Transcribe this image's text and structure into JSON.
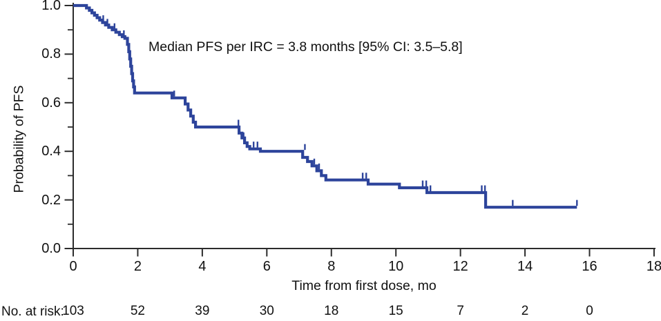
{
  "chart_data": {
    "type": "line",
    "subtype": "kaplan-meier-step",
    "annotation": "Median PFS per IRC = 3.8 months [95% CI: 3.5–5.8]",
    "xlabel": "Time from first dose, mo",
    "ylabel": "Probability of PFS",
    "xlim": [
      0,
      18
    ],
    "ylim": [
      0.0,
      1.0
    ],
    "x_ticks": [
      0,
      2,
      4,
      6,
      8,
      10,
      12,
      14,
      16,
      18
    ],
    "y_ticks_major": [
      "0.0",
      "0.2",
      "0.4",
      "0.6",
      "0.8",
      "1.0"
    ],
    "y_ticks_major_values": [
      0.0,
      0.2,
      0.4,
      0.6,
      0.8,
      1.0
    ],
    "y_ticks_minor_values": [
      0.1,
      0.3,
      0.5,
      0.7,
      0.9
    ],
    "grid": "off",
    "legend": "none",
    "series": [
      {
        "name": "PFS per IRC",
        "color": "#2d449b",
        "steps": [
          [
            0.0,
            1.0
          ],
          [
            0.41,
            0.99
          ],
          [
            0.5,
            0.98
          ],
          [
            0.58,
            0.97
          ],
          [
            0.66,
            0.96
          ],
          [
            0.74,
            0.95
          ],
          [
            0.82,
            0.94
          ],
          [
            0.91,
            0.93
          ],
          [
            1.0,
            0.92
          ],
          [
            1.1,
            0.91
          ],
          [
            1.21,
            0.9
          ],
          [
            1.32,
            0.89
          ],
          [
            1.43,
            0.88
          ],
          [
            1.52,
            0.872
          ],
          [
            1.6,
            0.865
          ],
          [
            1.68,
            0.84
          ],
          [
            1.72,
            0.81
          ],
          [
            1.75,
            0.78
          ],
          [
            1.78,
            0.75
          ],
          [
            1.81,
            0.72
          ],
          [
            1.84,
            0.69
          ],
          [
            1.87,
            0.665
          ],
          [
            1.9,
            0.64
          ],
          [
            3.06,
            0.62
          ],
          [
            3.47,
            0.595
          ],
          [
            3.56,
            0.57
          ],
          [
            3.64,
            0.545
          ],
          [
            3.72,
            0.52
          ],
          [
            3.79,
            0.5
          ],
          [
            5.14,
            0.475
          ],
          [
            5.23,
            0.455
          ],
          [
            5.31,
            0.435
          ],
          [
            5.39,
            0.42
          ],
          [
            5.47,
            0.41
          ],
          [
            5.8,
            0.4
          ],
          [
            7.11,
            0.375
          ],
          [
            7.26,
            0.358
          ],
          [
            7.4,
            0.34
          ],
          [
            7.55,
            0.32
          ],
          [
            7.69,
            0.3
          ],
          [
            7.83,
            0.282
          ],
          [
            9.14,
            0.265
          ],
          [
            10.11,
            0.25
          ],
          [
            10.96,
            0.23
          ],
          [
            12.78,
            0.17
          ],
          [
            15.61,
            0.17
          ]
        ],
        "censor_marks": [
          [
            0.93,
            0.93
          ],
          [
            1.06,
            0.915
          ],
          [
            1.28,
            0.897
          ],
          [
            1.57,
            0.868
          ],
          [
            3.13,
            0.62
          ],
          [
            5.12,
            0.5
          ],
          [
            5.28,
            0.448
          ],
          [
            5.59,
            0.41
          ],
          [
            5.71,
            0.41
          ],
          [
            7.18,
            0.4
          ],
          [
            7.47,
            0.34
          ],
          [
            7.62,
            0.32
          ],
          [
            8.97,
            0.282
          ],
          [
            9.08,
            0.282
          ],
          [
            10.83,
            0.25
          ],
          [
            10.94,
            0.25
          ],
          [
            11.07,
            0.23
          ],
          [
            12.66,
            0.23
          ],
          [
            12.76,
            0.23
          ],
          [
            13.62,
            0.17
          ],
          [
            15.61,
            0.17
          ]
        ]
      }
    ],
    "at_risk": {
      "label": "No. at risk:",
      "times": [
        0,
        2,
        4,
        6,
        8,
        10,
        12,
        14,
        16
      ],
      "counts": [
        103,
        52,
        39,
        30,
        18,
        15,
        7,
        2,
        0
      ]
    },
    "colors": {
      "curve": "#2d449b",
      "axis": "#2b2b2b",
      "text": "#111111"
    }
  }
}
